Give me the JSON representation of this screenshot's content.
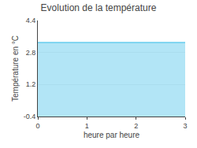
{
  "chart_data": {
    "type": "area",
    "title": "Evolution de la température",
    "x_label": "heure par heure",
    "y_label": "Température en °C",
    "x": [
      0,
      3
    ],
    "values": [
      3.3,
      3.3
    ],
    "color": "#66ccee",
    "xlim": [
      0,
      3
    ],
    "xticks": [
      0,
      1,
      2,
      3
    ],
    "ylim": [
      -0.4,
      4.4
    ],
    "yticks": [
      -0.4,
      1.2,
      2.8,
      4.4
    ],
    "grid": true
  }
}
